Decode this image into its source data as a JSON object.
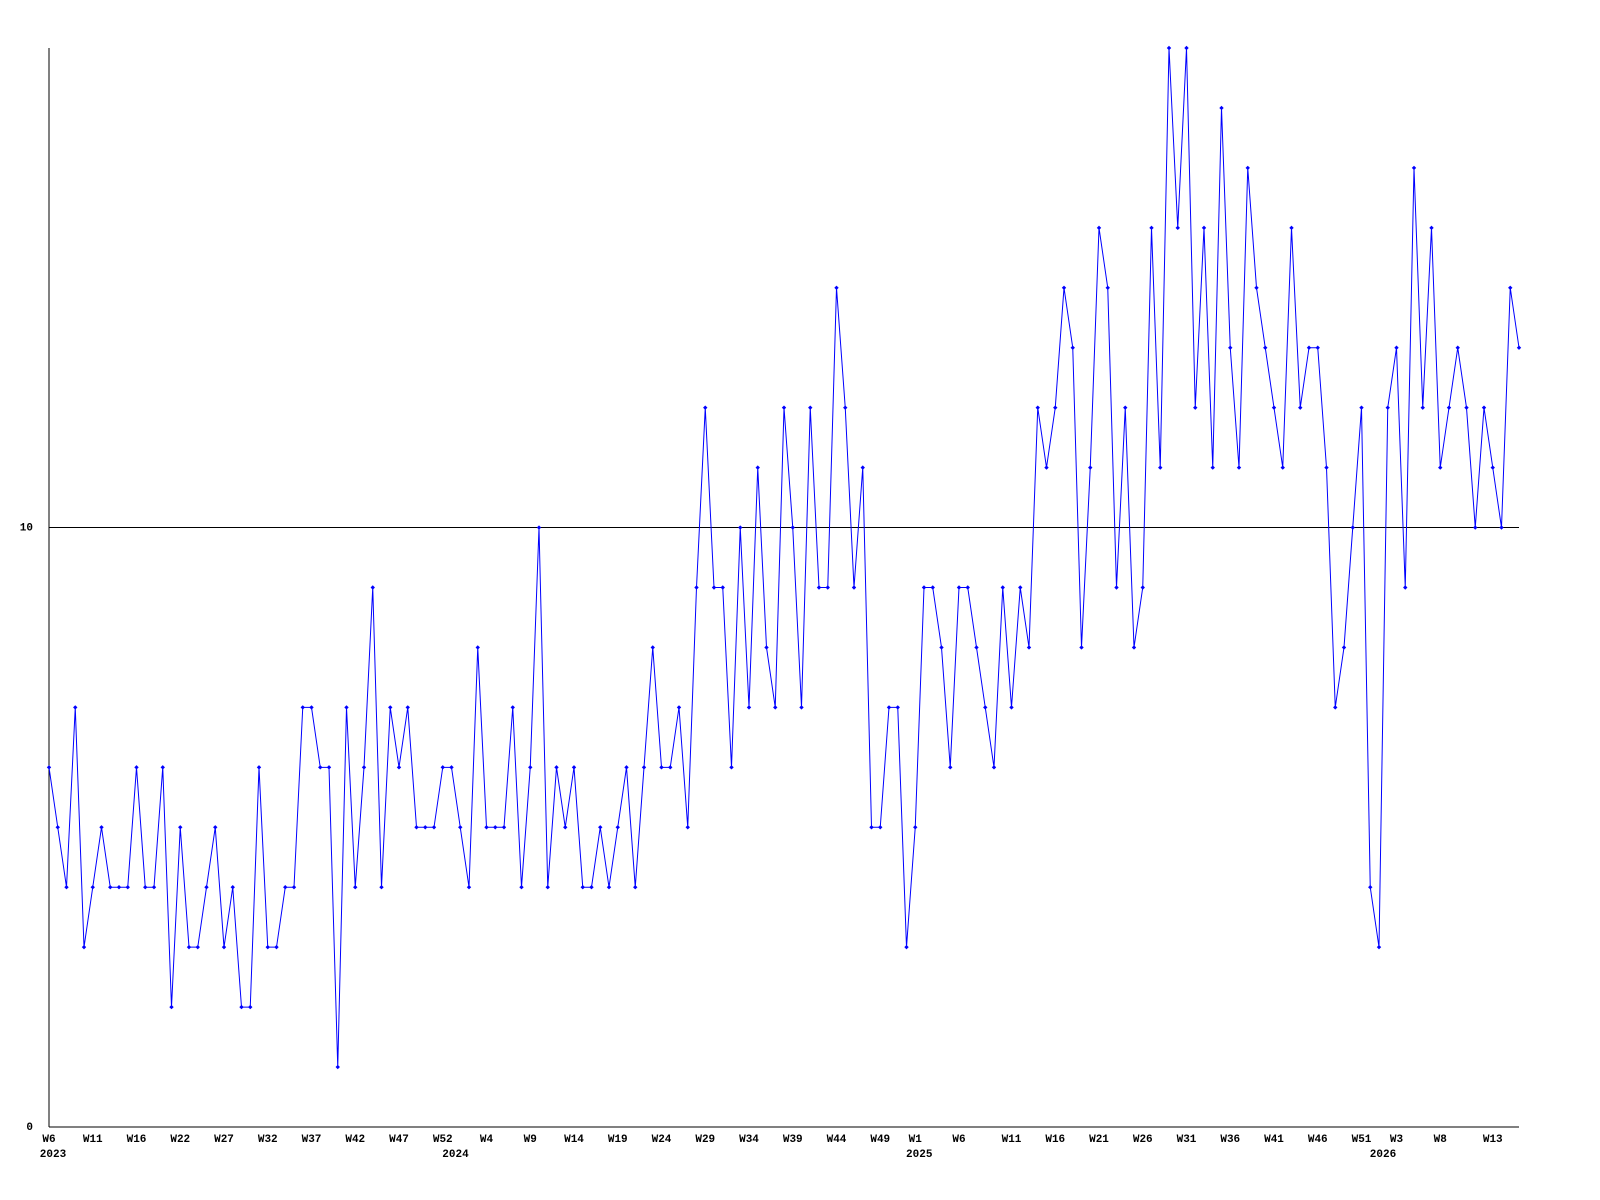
{
  "chart_data": {
    "type": "line",
    "color": "#0000ff",
    "ylim": [
      0,
      18
    ],
    "yticks": [
      0,
      10
    ],
    "grid": true,
    "categories": [
      "W6",
      null,
      null,
      null,
      null,
      "W11",
      null,
      null,
      null,
      null,
      "W16",
      null,
      null,
      null,
      null,
      "W22",
      null,
      null,
      null,
      null,
      "W27",
      null,
      null,
      null,
      null,
      "W32",
      null,
      null,
      null,
      null,
      "W37",
      null,
      null,
      null,
      null,
      "W42",
      null,
      null,
      null,
      null,
      "W47",
      null,
      null,
      null,
      null,
      "W52",
      null,
      null,
      null,
      null,
      "W4",
      null,
      null,
      null,
      null,
      "W9",
      null,
      null,
      null,
      null,
      "W14",
      null,
      null,
      null,
      null,
      "W19",
      null,
      null,
      null,
      null,
      "W24",
      null,
      null,
      null,
      null,
      "W29",
      null,
      null,
      null,
      null,
      "W34",
      null,
      null,
      null,
      null,
      "W39",
      null,
      null,
      null,
      null,
      "W44",
      null,
      null,
      null,
      null,
      "W49",
      null,
      null,
      null,
      "W1",
      null,
      null,
      null,
      null,
      "W6",
      null,
      null,
      null,
      null,
      null,
      "W11",
      null,
      null,
      null,
      null,
      "W16",
      null,
      null,
      null,
      null,
      "W21",
      null,
      null,
      null,
      null,
      "W26",
      null,
      null,
      null,
      null,
      "W31",
      null,
      null,
      null,
      null,
      "W36",
      null,
      null,
      null,
      null,
      "W41",
      null,
      null,
      null,
      null,
      "W46",
      null,
      null,
      null,
      null,
      "W51",
      null,
      null,
      null,
      "W3",
      null,
      null,
      null,
      null,
      "W8",
      null,
      null,
      null,
      null,
      null,
      "W13",
      null,
      null,
      null
    ],
    "category_years": [
      "2023",
      null,
      null,
      null,
      null,
      null,
      null,
      null,
      null,
      null,
      null,
      null,
      null,
      null,
      null,
      null,
      null,
      null,
      null,
      null,
      null,
      null,
      null,
      null,
      null,
      null,
      null,
      null,
      null,
      null,
      null,
      null,
      null,
      null,
      null,
      null,
      null,
      null,
      null,
      null,
      null,
      null,
      null,
      null,
      null,
      null,
      "2024",
      null,
      null,
      null,
      null,
      null,
      null,
      null,
      null,
      null,
      null,
      null,
      null,
      null,
      null,
      null,
      null,
      null,
      null,
      null,
      null,
      null,
      null,
      null,
      null,
      null,
      null,
      null,
      null,
      null,
      null,
      null,
      null,
      null,
      null,
      null,
      null,
      null,
      null,
      null,
      null,
      null,
      null,
      null,
      null,
      null,
      null,
      null,
      null,
      null,
      null,
      null,
      null,
      "2025",
      null,
      null,
      null,
      null,
      null,
      null,
      null,
      null,
      null,
      null,
      null,
      null,
      null,
      null,
      null,
      null,
      null,
      null,
      null,
      null,
      null,
      null,
      null,
      null,
      null,
      null,
      null,
      null,
      null,
      null,
      null,
      null,
      null,
      null,
      null,
      null,
      null,
      null,
      null,
      null,
      null,
      null,
      null,
      null,
      null,
      null,
      null,
      null,
      null,
      null,
      null,
      null,
      "2026",
      null,
      null,
      null,
      null,
      null,
      null,
      null,
      null,
      null,
      null,
      null,
      null,
      null,
      null,
      null,
      null
    ],
    "values": [
      6,
      5,
      4,
      7,
      3,
      4,
      5,
      4,
      4,
      4,
      6,
      4,
      4,
      6,
      2,
      5,
      3,
      3,
      4,
      5,
      3,
      4,
      2,
      2,
      6,
      3,
      3,
      4,
      4,
      7,
      7,
      6,
      6,
      1,
      7,
      4,
      6,
      9,
      4,
      7,
      6,
      7,
      5,
      5,
      5,
      6,
      6,
      5,
      4,
      8,
      5,
      5,
      5,
      7,
      4,
      6,
      10,
      4,
      6,
      5,
      6,
      4,
      4,
      5,
      4,
      5,
      6,
      4,
      6,
      8,
      6,
      6,
      7,
      5,
      9,
      12,
      9,
      9,
      6,
      10,
      7,
      11,
      8,
      7,
      12,
      10,
      7,
      12,
      9,
      9,
      14,
      12,
      9,
      11,
      5,
      5,
      7,
      7,
      3,
      5,
      9,
      9,
      8,
      6,
      9,
      9,
      8,
      7,
      6,
      9,
      7,
      9,
      8,
      12,
      11,
      12,
      14,
      13,
      8,
      11,
      15,
      14,
      9,
      12,
      8,
      9,
      15,
      11,
      18,
      15,
      18,
      12,
      15,
      11,
      17,
      13,
      11,
      16,
      14,
      13,
      12,
      11,
      15,
      12,
      13,
      13,
      11,
      7,
      8,
      10,
      12,
      4,
      3,
      12,
      13,
      9,
      16,
      12,
      15,
      11,
      12,
      13,
      12,
      10,
      12,
      11,
      10,
      14,
      13
    ]
  }
}
